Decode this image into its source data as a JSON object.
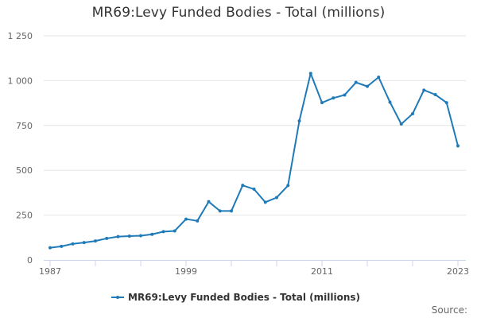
{
  "chart_data": {
    "type": "line",
    "title": "MR69:Levy Funded Bodies - Total (millions)",
    "xlabel": "",
    "ylabel": "",
    "x": [
      1987,
      1988,
      1989,
      1990,
      1991,
      1992,
      1993,
      1994,
      1995,
      1996,
      1997,
      1998,
      1999,
      2000,
      2001,
      2002,
      2003,
      2004,
      2005,
      2006,
      2007,
      2008,
      2009,
      2010,
      2011,
      2012,
      2013,
      2014,
      2015,
      2016,
      2017,
      2018,
      2019,
      2020,
      2021,
      2022,
      2023
    ],
    "series": [
      {
        "name": "MR69:Levy Funded Bodies - Total (millions)",
        "color": "#1f7ab8",
        "values": [
          68,
          76,
          90,
          97,
          106,
          120,
          130,
          133,
          135,
          143,
          158,
          162,
          228,
          218,
          325,
          273,
          273,
          416,
          395,
          322,
          348,
          415,
          775,
          1040,
          877,
          903,
          920,
          990,
          968,
          1019,
          880,
          758,
          815,
          947,
          922,
          877,
          636
        ]
      }
    ],
    "xticks": [
      "1987",
      "1999",
      "2011",
      "2023"
    ],
    "yticks": [
      "0",
      "250",
      "500",
      "750",
      "1 000",
      "1 250"
    ],
    "ylim": [
      0,
      1250
    ],
    "xlim": [
      1987,
      2023
    ],
    "grid": true,
    "legend_position": "bottom-center",
    "source_label": "Source:"
  }
}
